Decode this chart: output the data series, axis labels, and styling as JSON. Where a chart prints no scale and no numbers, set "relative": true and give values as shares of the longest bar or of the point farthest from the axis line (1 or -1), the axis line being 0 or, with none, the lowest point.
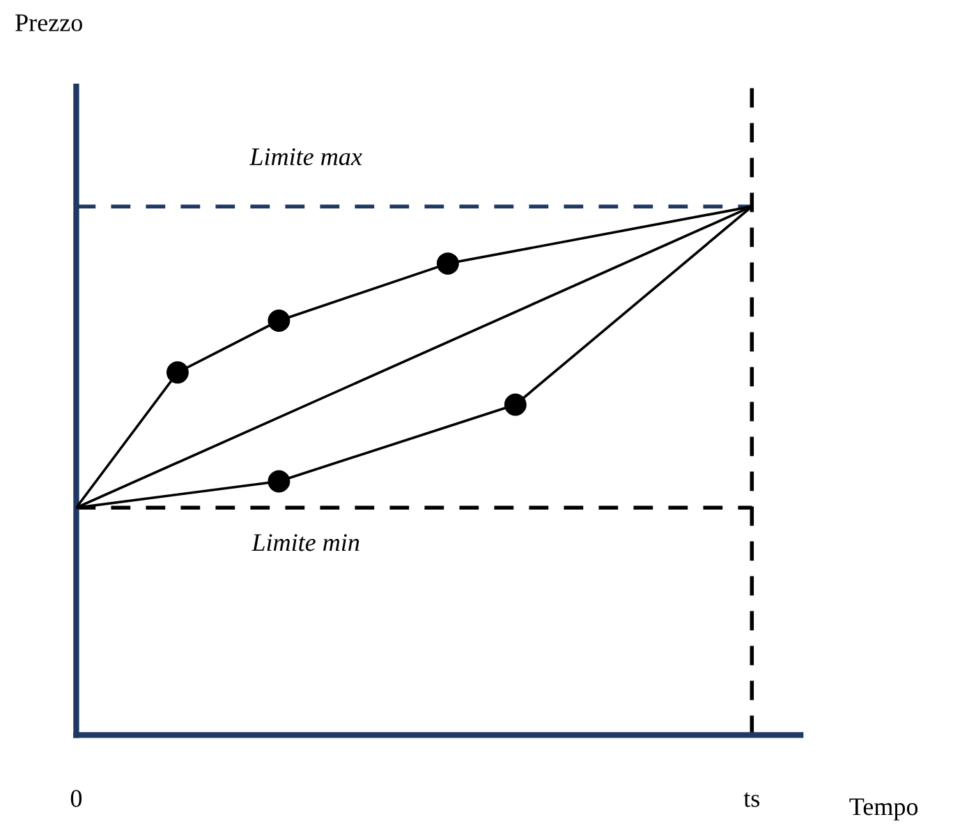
{
  "chart_data": {
    "type": "line",
    "relative": true,
    "xlabel": "Tempo",
    "annotations": [
      "Prezzo"
    ],
    "categories": [
      "0",
      null,
      null,
      null,
      null,
      null,
      null,
      null,
      null,
      null,
      null,
      null,
      null,
      null,
      null,
      null,
      null,
      null,
      null,
      null,
      "ts"
    ],
    "marker": "none",
    "line_style": "solid",
    "series": [
      {
        "color": "#000000",
        "values": [
          0.43,
          null,
          null,
          0.686,
          null,
          null,
          0.784,
          null,
          null,
          null,
          null,
          0.892,
          null,
          null,
          null,
          null,
          null,
          null,
          null,
          null,
          1
        ]
      },
      {
        "color": "#000000",
        "values": [
          0.43,
          null,
          null,
          null,
          null,
          null,
          null,
          null,
          null,
          null,
          null,
          null,
          null,
          null,
          null,
          null,
          null,
          null,
          null,
          null,
          1
        ]
      },
      {
        "color": "#000000",
        "values": [
          0.43,
          null,
          null,
          null,
          null,
          null,
          0.48,
          null,
          null,
          null,
          null,
          null,
          null,
          0.625,
          null,
          null,
          null,
          null,
          null,
          null,
          1
        ]
      },
      {
        "type": "scatter",
        "marker": "circle",
        "color": "#000000",
        "values": [
          null,
          null,
          null,
          0.686,
          null,
          null,
          0.784,
          null,
          null,
          null,
          null,
          0.892,
          null,
          null,
          null,
          null,
          null,
          null,
          null,
          null,
          null
        ]
      },
      {
        "type": "scatter",
        "marker": "circle",
        "color": "#000000",
        "values": [
          null,
          null,
          null,
          null,
          null,
          null,
          0.48,
          null,
          null,
          null,
          null,
          null,
          null,
          0.625,
          null,
          null,
          null,
          null,
          null,
          null,
          null
        ]
      }
    ],
    "ref_lines": [
      {
        "axis": "y",
        "value": 1,
        "label": "Limite max",
        "color": "#1f3864",
        "line_style": "dashed"
      },
      {
        "axis": "y",
        "value": 0.43,
        "label": "Limite min",
        "color": "#000000",
        "line_style": "dashed"
      },
      {
        "axis": "x",
        "value": "ts",
        "label": null,
        "color": "#000000",
        "line_style": "dashed"
      }
    ]
  }
}
